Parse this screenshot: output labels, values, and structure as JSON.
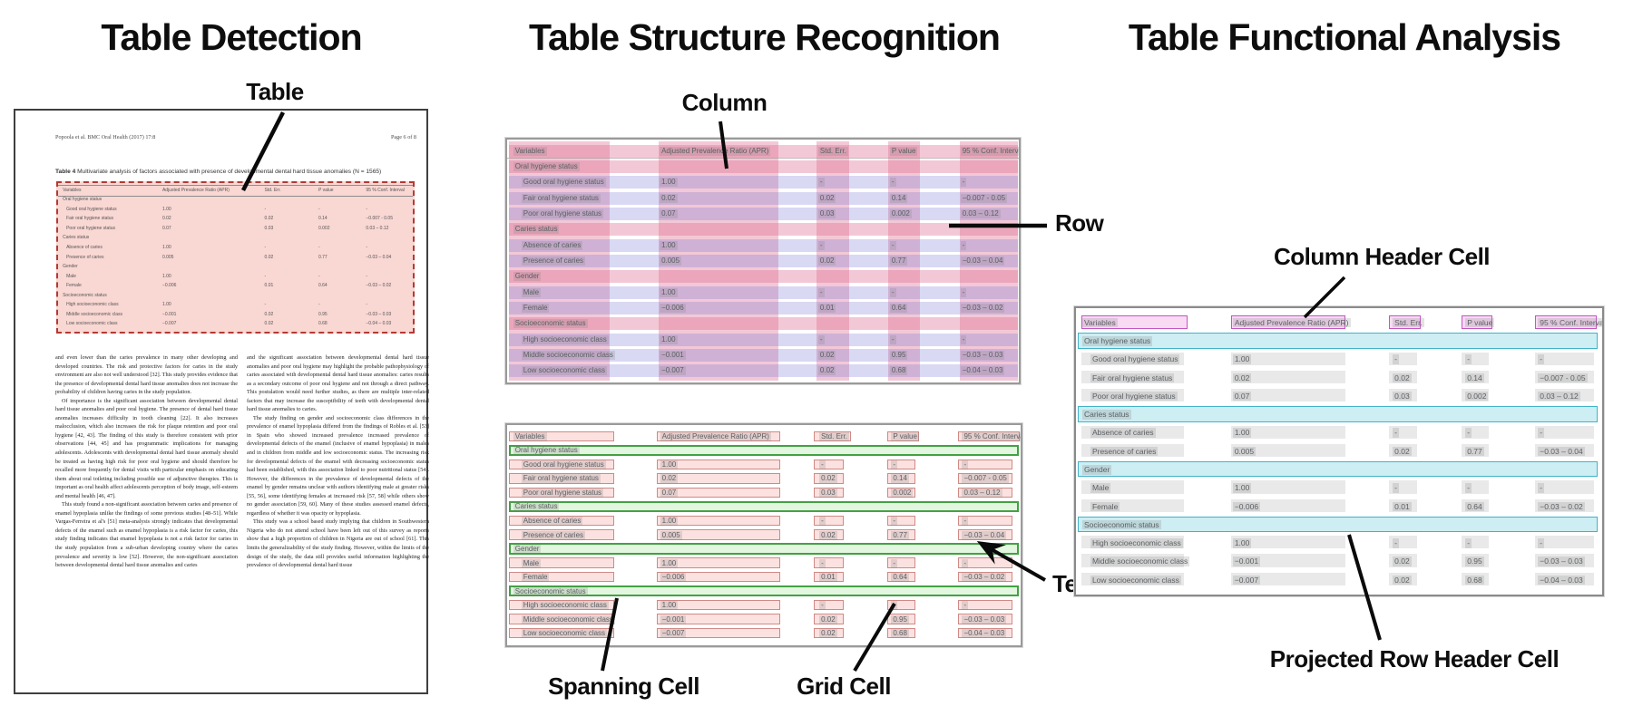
{
  "panels": {
    "detection": {
      "title": "Table Detection",
      "annotation_table": "Table"
    },
    "structure": {
      "title": "Table Structure Recognition",
      "annotations": {
        "column": "Column",
        "row": "Row",
        "spanning_cell": "Spanning Cell",
        "text_cell": "Text Cell",
        "grid_cell": "Grid Cell"
      }
    },
    "functional": {
      "title": "Table Functional Analysis",
      "annotations": {
        "column_header_cell": "Column Header Cell",
        "projected_row_header_cell": "Projected Row Header Cell"
      }
    }
  },
  "document": {
    "journal_header": "Popoola et al. BMC Oral Health  (2017) 17:8",
    "page_header": "Page 6 of 8",
    "table_caption_label": "Table 4",
    "table_caption": " Multivariate analysis of factors associated with presence of developmental dental hard tissue anomalies (N = 1565)",
    "body_left": [
      "and even lower than the caries prevalence in many other developing and developed countries. The risk and protective factors for caries in the study environment are also not well understood [32]. This study provides evidence that the presence of developmental dental hard tissue anomalies does not increase the probability of children having caries in the study population.",
      "Of importance is the significant association between developmental dental hard tissue anomalies and poor oral hygiene. The presence of dental hard tissue anomalies increases difficulty in tooth cleaning [22]. It also increases malocclusion, which also increases the risk for plaque retention and poor oral hygiene [42, 43]. The finding of this study is therefore consistent with prior observations [44, 45] and has programmatic implications for managing adolescents. Adolescents with developmental dental hard tissue anomaly should be treated as having high risk for poor oral hygiene and should therefore be recalled more frequently for dental visits with particular emphasis on educating them about oral toileting including possible use of adjunctive therapies. This is important as oral health affect adolescents perception of body image, self-esteem and mental health [46, 47].",
      "This study found a non-significant association between caries and presence of enamel hypoplasia unlike the findings of some previous studies [48–51]. While Vargas-Ferreira et al's [51] meta-analysis strongly indicates that developmental defects of the enamel such as enamel hypoplasia is a risk factor for caries, this study finding indicates that enamel hypoplasia is not a risk factor for caries in the study population from a sub-urban developing country where the caries prevalence and severity is low [52]. However, the non-significant association between developmental dental hard tissue anomalies and caries"
    ],
    "body_right": [
      "and the significant association between developmental dental hard tissue anomalies and poor oral hygiene may highlight the probable pathophysiology of caries associated with developmental dental hard tissue anomalies: caries results as a secondary outcome of poor oral hygiene and not through a direct pathway. This postulation would need further studies, as there are multiple inter-related factors that may increase the susceptibility of teeth with developmental dental hard tissue anomalies to caries.",
      "The study finding on gender and socioeconomic class differences in the prevalence of enamel hypoplasia differed from the findings of Robles et al. [53] in Spain who showed increased prevalence increased prevalence of developmental defects of the enamel (inclusive of enamel hypoplasia) in males and in children from middle and low socioeconomic status. The increasing risk for developmental defects of the enamel with decreasing socioeconomic status had been established, with this association linked to poor nutritional status [54]. However, the differences in the prevalence of developmental defects of the enamel by gender remains unclear with authors identifying male at greater risks [55, 56], some identifying females at increased risk [57, 58] while others show no gender association [59, 60]. Many of these studies assessed enamel defects, regardless of whether it was opacity or hypoplasia.",
      "This study was a school based study implying that children in Southwestern Nigeria who do not attend school have been left out of this survey as reports show that a high proportion of children in Nigeria are out of school [61]. This limits the generalizability of the study finding. However, within the limits of the design of the study, the data still provides useful information highlighting the prevalence of developmental dental hard tissue"
    ]
  },
  "table": {
    "headers": [
      "Variables",
      "Adjusted Prevalence Ratio (APR)",
      "Std. Err.",
      "P value",
      "95 % Conf. Interval"
    ],
    "rows": [
      {
        "type": "section",
        "label": "Oral hygiene status"
      },
      {
        "type": "data",
        "cells": [
          "Good oral hygiene status",
          "1.00",
          "-",
          "-",
          "-"
        ]
      },
      {
        "type": "data",
        "cells": [
          "Fair oral hygiene status",
          "0.02",
          "0.02",
          "0.14",
          "−0.007 - 0.05"
        ]
      },
      {
        "type": "data",
        "cells": [
          "Poor oral hygiene status",
          "0.07",
          "0.03",
          "0.002",
          "0.03 – 0.12"
        ]
      },
      {
        "type": "section",
        "label": "Caries status"
      },
      {
        "type": "data",
        "cells": [
          "Absence of caries",
          "1.00",
          "-",
          "-",
          "-"
        ]
      },
      {
        "type": "data",
        "cells": [
          "Presence of caries",
          "0.005",
          "0.02",
          "0.77",
          "−0.03 – 0.04"
        ]
      },
      {
        "type": "section",
        "label": "Gender"
      },
      {
        "type": "data",
        "cells": [
          "Male",
          "1.00",
          "-",
          "-",
          "-"
        ]
      },
      {
        "type": "data",
        "cells": [
          "Female",
          "−0.006",
          "0.01",
          "0.64",
          "−0.03 – 0.02"
        ]
      },
      {
        "type": "section",
        "label": "Socioeconomic status"
      },
      {
        "type": "data",
        "cells": [
          "High socioeconomic class",
          "1.00",
          "-",
          "-",
          "-"
        ]
      },
      {
        "type": "data",
        "cells": [
          "Middle socioeconomic class",
          "−0.001",
          "0.02",
          "0.95",
          "−0.03 – 0.03"
        ]
      },
      {
        "type": "data",
        "cells": [
          "Low socioeconomic class",
          "−0.007",
          "0.02",
          "0.68",
          "−0.04 – 0.03"
        ]
      }
    ]
  },
  "colors": {
    "detection_fill": "#f9d7d3",
    "detection_border": "#b23a33",
    "column_band": "rgba(224,110,146,0.38)",
    "row_band": "rgba(118,118,216,0.28)",
    "header_row_band": "rgba(224,110,146,0.38)",
    "cell_fill": "#fbe2e0",
    "cell_border": "#cf8a86",
    "spanning_fill": "#e3f6df",
    "spanning_border": "#43a143",
    "col_header_fill": "#f8daf3",
    "col_header_border": "#c455c4",
    "projected_fill": "#cdeef3",
    "projected_border": "#43b2c8",
    "text_highlight": "rgba(128,128,128,0.22)",
    "gray_cell_fill": "#e9e9e9",
    "table_text": "#5a5f63",
    "doc_table_text": "#565656",
    "rule_color": "#9a8a8a"
  }
}
